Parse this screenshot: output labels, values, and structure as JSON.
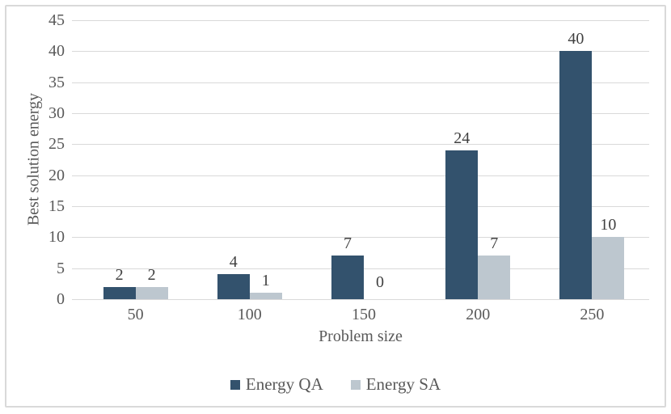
{
  "chart_data": {
    "type": "bar",
    "title": "",
    "categories": [
      "50",
      "100",
      "150",
      "200",
      "250"
    ],
    "series": [
      {
        "name": "Energy QA",
        "color": "#33526d",
        "values": [
          2,
          4,
          7,
          24,
          40
        ]
      },
      {
        "name": "Energy SA",
        "color": "#bdc7cf",
        "values": [
          2,
          1,
          0,
          7,
          10
        ]
      }
    ],
    "data_labels": {
      "Energy QA": [
        "2",
        "4",
        "7",
        "24",
        "40"
      ],
      "Energy SA": [
        "2",
        "1",
        "0",
        "7",
        "10"
      ]
    },
    "xlabel": "Problem size",
    "ylabel": "Best solution energy",
    "ylim": [
      0,
      45
    ],
    "yticks": [
      "0",
      "5",
      "10",
      "15",
      "20",
      "25",
      "30",
      "35",
      "40",
      "45"
    ],
    "grid": "horizontal",
    "legend_position": "bottom",
    "colors": {
      "gridline": "#d9d9d9",
      "axis_text": "#595959",
      "data_label_text": "#404040",
      "chart_border": "#d9d9d9",
      "background": "#ffffff"
    }
  }
}
